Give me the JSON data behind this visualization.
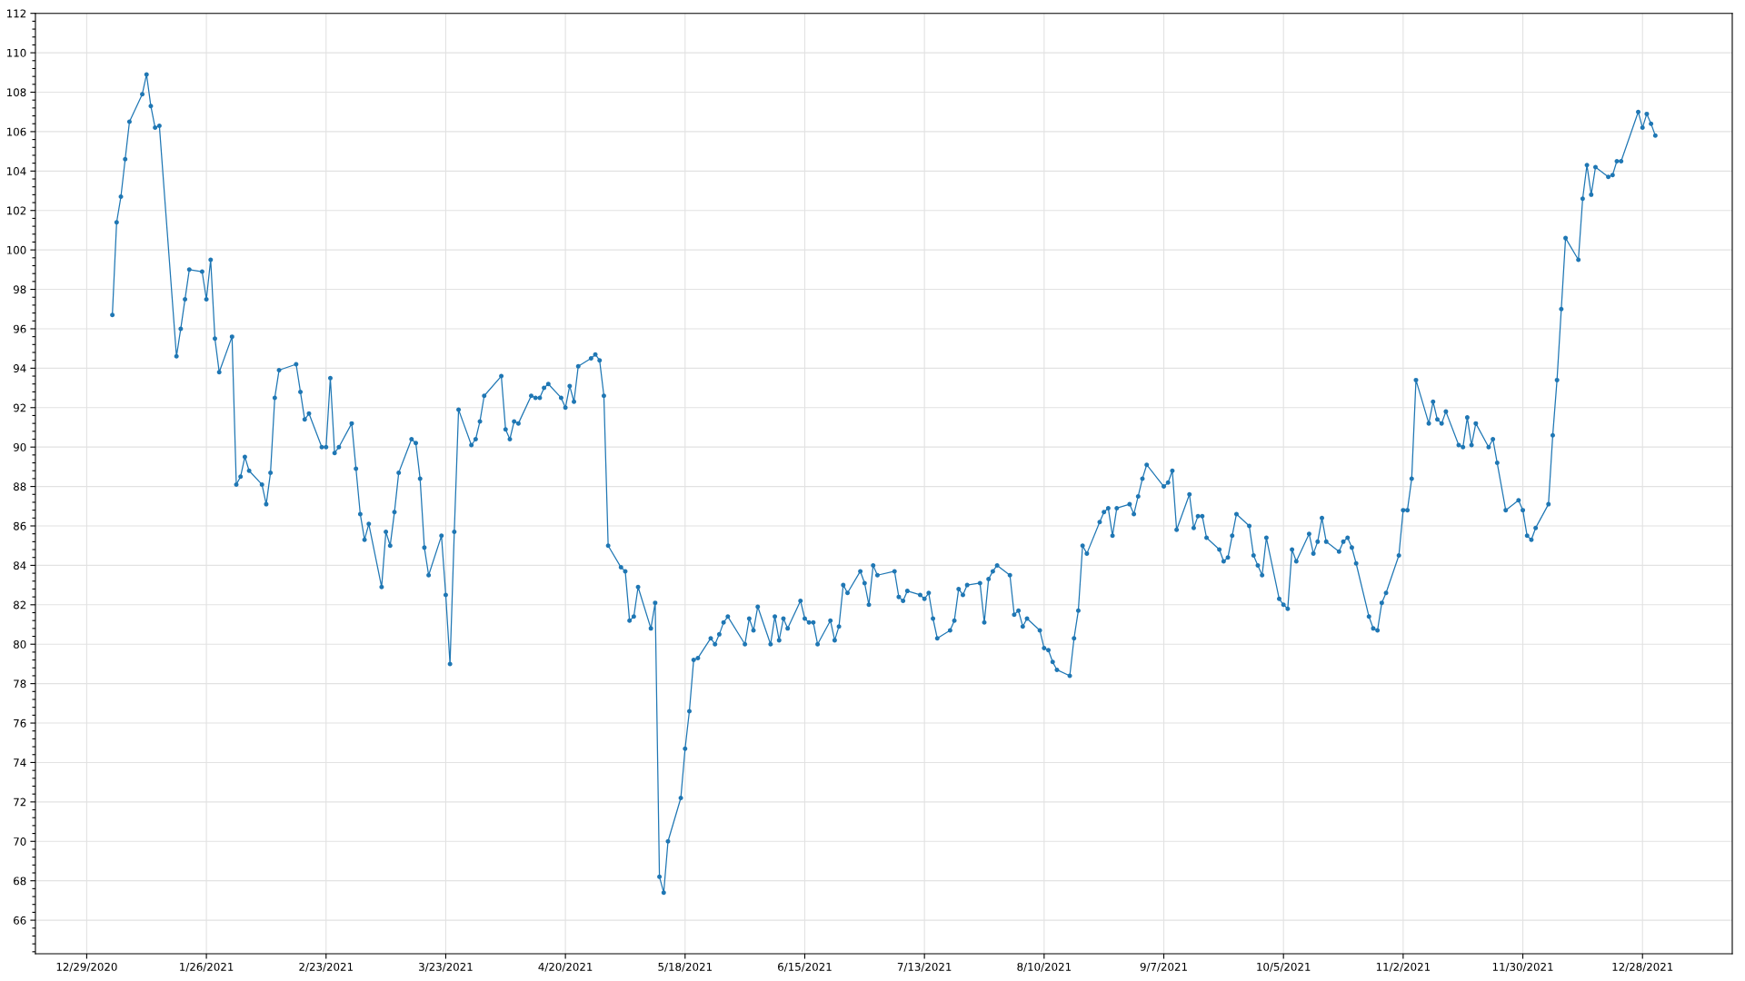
{
  "chart_data": {
    "type": "line",
    "x": [
      "2021-01-04",
      "2021-01-05",
      "2021-01-06",
      "2021-01-07",
      "2021-01-08",
      "2021-01-11",
      "2021-01-12",
      "2021-01-13",
      "2021-01-14",
      "2021-01-15",
      "2021-01-19",
      "2021-01-20",
      "2021-01-21",
      "2021-01-22",
      "2021-01-25",
      "2021-01-26",
      "2021-01-27",
      "2021-01-28",
      "2021-01-29",
      "2021-02-01",
      "2021-02-02",
      "2021-02-03",
      "2021-02-04",
      "2021-02-05",
      "2021-02-08",
      "2021-02-09",
      "2021-02-10",
      "2021-02-11",
      "2021-02-12",
      "2021-02-16",
      "2021-02-17",
      "2021-02-18",
      "2021-02-19",
      "2021-02-22",
      "2021-02-23",
      "2021-02-24",
      "2021-02-25",
      "2021-02-26",
      "2021-03-01",
      "2021-03-02",
      "2021-03-03",
      "2021-03-04",
      "2021-03-05",
      "2021-03-08",
      "2021-03-09",
      "2021-03-10",
      "2021-03-11",
      "2021-03-12",
      "2021-03-15",
      "2021-03-16",
      "2021-03-17",
      "2021-03-18",
      "2021-03-19",
      "2021-03-22",
      "2021-03-23",
      "2021-03-24",
      "2021-03-25",
      "2021-03-26",
      "2021-03-29",
      "2021-03-30",
      "2021-03-31",
      "2021-04-01",
      "2021-04-05",
      "2021-04-06",
      "2021-04-07",
      "2021-04-08",
      "2021-04-09",
      "2021-04-12",
      "2021-04-13",
      "2021-04-14",
      "2021-04-15",
      "2021-04-16",
      "2021-04-19",
      "2021-04-20",
      "2021-04-21",
      "2021-04-22",
      "2021-04-23",
      "2021-04-26",
      "2021-04-27",
      "2021-04-28",
      "2021-04-29",
      "2021-04-30",
      "2021-05-03",
      "2021-05-04",
      "2021-05-05",
      "2021-05-06",
      "2021-05-07",
      "2021-05-10",
      "2021-05-11",
      "2021-05-12",
      "2021-05-13",
      "2021-05-14",
      "2021-05-17",
      "2021-05-18",
      "2021-05-19",
      "2021-05-20",
      "2021-05-21",
      "2021-05-24",
      "2021-05-25",
      "2021-05-26",
      "2021-05-27",
      "2021-05-28",
      "2021-06-01",
      "2021-06-02",
      "2021-06-03",
      "2021-06-04",
      "2021-06-07",
      "2021-06-08",
      "2021-06-09",
      "2021-06-10",
      "2021-06-11",
      "2021-06-14",
      "2021-06-15",
      "2021-06-16",
      "2021-06-17",
      "2021-06-18",
      "2021-06-21",
      "2021-06-22",
      "2021-06-23",
      "2021-06-24",
      "2021-06-25",
      "2021-06-28",
      "2021-06-29",
      "2021-06-30",
      "2021-07-01",
      "2021-07-02",
      "2021-07-06",
      "2021-07-07",
      "2021-07-08",
      "2021-07-09",
      "2021-07-12",
      "2021-07-13",
      "2021-07-14",
      "2021-07-15",
      "2021-07-16",
      "2021-07-19",
      "2021-07-20",
      "2021-07-21",
      "2021-07-22",
      "2021-07-23",
      "2021-07-26",
      "2021-07-27",
      "2021-07-28",
      "2021-07-29",
      "2021-07-30",
      "2021-08-02",
      "2021-08-03",
      "2021-08-04",
      "2021-08-05",
      "2021-08-06",
      "2021-08-09",
      "2021-08-10",
      "2021-08-11",
      "2021-08-12",
      "2021-08-13",
      "2021-08-16",
      "2021-08-17",
      "2021-08-18",
      "2021-08-19",
      "2021-08-20",
      "2021-08-23",
      "2021-08-24",
      "2021-08-25",
      "2021-08-26",
      "2021-08-27",
      "2021-08-30",
      "2021-08-31",
      "2021-09-01",
      "2021-09-02",
      "2021-09-03",
      "2021-09-07",
      "2021-09-08",
      "2021-09-09",
      "2021-09-10",
      "2021-09-13",
      "2021-09-14",
      "2021-09-15",
      "2021-09-16",
      "2021-09-17",
      "2021-09-20",
      "2021-09-21",
      "2021-09-22",
      "2021-09-23",
      "2021-09-24",
      "2021-09-27",
      "2021-09-28",
      "2021-09-29",
      "2021-09-30",
      "2021-10-01",
      "2021-10-04",
      "2021-10-05",
      "2021-10-06",
      "2021-10-07",
      "2021-10-08",
      "2021-10-11",
      "2021-10-12",
      "2021-10-13",
      "2021-10-14",
      "2021-10-15",
      "2021-10-18",
      "2021-10-19",
      "2021-10-20",
      "2021-10-21",
      "2021-10-22",
      "2021-10-25",
      "2021-10-26",
      "2021-10-27",
      "2021-10-28",
      "2021-10-29",
      "2021-11-01",
      "2021-11-02",
      "2021-11-03",
      "2021-11-04",
      "2021-11-05",
      "2021-11-08",
      "2021-11-09",
      "2021-11-10",
      "2021-11-11",
      "2021-11-12",
      "2021-11-15",
      "2021-11-16",
      "2021-11-17",
      "2021-11-18",
      "2021-11-19",
      "2021-11-22",
      "2021-11-23",
      "2021-11-24",
      "2021-11-26",
      "2021-11-29",
      "2021-11-30",
      "2021-12-01",
      "2021-12-02",
      "2021-12-03",
      "2021-12-06",
      "2021-12-07",
      "2021-12-08",
      "2021-12-09",
      "2021-12-10",
      "2021-12-13",
      "2021-12-14",
      "2021-12-15",
      "2021-12-16",
      "2021-12-17",
      "2021-12-20",
      "2021-12-21",
      "2021-12-22",
      "2021-12-23",
      "2021-12-27",
      "2021-12-28",
      "2021-12-29",
      "2021-12-30",
      "2021-12-31"
    ],
    "values": [
      96.7,
      101.4,
      102.7,
      104.6,
      106.5,
      107.9,
      108.9,
      107.3,
      106.2,
      106.3,
      94.6,
      96.0,
      97.5,
      99.0,
      98.9,
      97.5,
      99.5,
      95.5,
      93.8,
      95.6,
      88.1,
      88.5,
      89.5,
      88.8,
      88.1,
      87.1,
      88.7,
      92.5,
      93.9,
      94.2,
      92.8,
      91.4,
      91.7,
      90.0,
      90.0,
      93.5,
      89.7,
      90.0,
      91.2,
      88.9,
      86.6,
      85.3,
      86.1,
      82.9,
      85.7,
      85.0,
      86.7,
      88.7,
      90.4,
      90.2,
      88.4,
      84.9,
      83.5,
      85.5,
      82.5,
      79.0,
      85.7,
      91.9,
      90.1,
      90.4,
      91.3,
      92.6,
      93.6,
      90.9,
      90.4,
      91.3,
      91.2,
      92.6,
      92.5,
      92.5,
      93.0,
      93.2,
      92.5,
      92.0,
      93.1,
      92.3,
      94.1,
      94.5,
      94.7,
      94.4,
      92.6,
      85.0,
      83.9,
      83.7,
      81.2,
      81.4,
      82.9,
      80.8,
      82.1,
      68.2,
      67.4,
      70.0,
      72.2,
      74.7,
      76.6,
      79.2,
      79.3,
      80.3,
      80.0,
      80.5,
      81.1,
      81.4,
      80.0,
      81.3,
      80.7,
      81.9,
      80.0,
      81.4,
      80.2,
      81.3,
      80.8,
      82.2,
      81.3,
      81.1,
      81.1,
      80.0,
      81.2,
      80.2,
      80.9,
      83.0,
      82.6,
      83.7,
      83.1,
      82.0,
      84.0,
      83.5,
      83.7,
      82.4,
      82.2,
      82.7,
      82.5,
      82.3,
      82.6,
      81.3,
      80.3,
      80.7,
      81.2,
      82.8,
      82.5,
      83.0,
      83.1,
      81.1,
      83.3,
      83.7,
      84.0,
      83.5,
      81.5,
      81.7,
      80.9,
      81.3,
      80.7,
      79.8,
      79.7,
      79.1,
      78.7,
      78.4,
      80.3,
      81.7,
      85.0,
      84.6,
      86.2,
      86.7,
      86.9,
      85.5,
      86.9,
      87.1,
      86.6,
      87.5,
      88.4,
      89.1,
      88.0,
      88.2,
      88.8,
      85.8,
      87.6,
      85.9,
      86.5,
      86.5,
      85.4,
      84.8,
      84.2,
      84.4,
      85.5,
      86.6,
      86.0,
      84.5,
      84.0,
      83.5,
      85.4,
      82.3,
      82.0,
      81.8,
      84.8,
      84.2,
      85.6,
      84.6,
      85.2,
      86.4,
      85.2,
      84.7,
      85.2,
      85.4,
      84.9,
      84.1,
      81.4,
      80.8,
      80.7,
      82.1,
      82.6,
      84.5,
      86.8,
      86.8,
      88.4,
      93.4,
      91.2,
      92.3,
      91.4,
      91.2,
      91.8,
      90.1,
      90.0,
      91.5,
      90.1,
      91.2,
      90.0,
      90.4,
      89.2,
      86.8,
      87.3,
      86.8,
      85.5,
      85.3,
      85.9,
      87.1,
      90.6,
      93.4,
      97.0,
      100.6,
      99.5,
      102.6,
      104.3,
      102.8,
      104.2,
      103.7,
      103.8,
      104.5,
      104.5,
      107.0,
      106.2,
      106.9,
      106.4,
      105.8
    ],
    "color": "#1f77b4",
    "marker": "circle",
    "line_style": "solid",
    "grid": true,
    "xlim": [
      "2020-12-17",
      "2022-01-18"
    ],
    "xticks": [
      {
        "value": "2020-12-29",
        "label": "12/29/2020"
      },
      {
        "value": "2021-01-26",
        "label": "1/26/2021"
      },
      {
        "value": "2021-02-23",
        "label": "2/23/2021"
      },
      {
        "value": "2021-03-23",
        "label": "3/23/2021"
      },
      {
        "value": "2021-04-20",
        "label": "4/20/2021"
      },
      {
        "value": "2021-05-18",
        "label": "5/18/2021"
      },
      {
        "value": "2021-06-15",
        "label": "6/15/2021"
      },
      {
        "value": "2021-07-13",
        "label": "7/13/2021"
      },
      {
        "value": "2021-08-10",
        "label": "8/10/2021"
      },
      {
        "value": "2021-09-07",
        "label": "9/7/2021"
      },
      {
        "value": "2021-10-05",
        "label": "10/5/2021"
      },
      {
        "value": "2021-11-02",
        "label": "11/2/2021"
      },
      {
        "value": "2021-11-30",
        "label": "11/30/2021"
      },
      {
        "value": "2021-12-28",
        "label": "12/28/2021"
      }
    ],
    "ylim": [
      64.3,
      112
    ],
    "yticks": [
      {
        "value": 64.4,
        "label": null
      },
      {
        "value": 64.8,
        "label": null
      },
      {
        "value": 65.2,
        "label": null
      },
      {
        "value": 65.6,
        "label": null
      },
      66,
      {
        "value": 66.4,
        "label": null
      },
      {
        "value": 66.8,
        "label": null
      },
      {
        "value": 67.2,
        "label": null
      },
      {
        "value": 67.6,
        "label": null
      },
      68,
      {
        "value": 68.4,
        "label": null
      },
      {
        "value": 68.8,
        "label": null
      },
      {
        "value": 69.2,
        "label": null
      },
      {
        "value": 69.6,
        "label": null
      },
      70,
      {
        "value": 70.4,
        "label": null
      },
      {
        "value": 70.8,
        "label": null
      },
      {
        "value": 71.2,
        "label": null
      },
      {
        "value": 71.6,
        "label": null
      },
      72,
      {
        "value": 72.4,
        "label": null
      },
      {
        "value": 72.8,
        "label": null
      },
      {
        "value": 73.2,
        "label": null
      },
      {
        "value": 73.6,
        "label": null
      },
      74,
      {
        "value": 74.4,
        "label": null
      },
      {
        "value": 74.8,
        "label": null
      },
      {
        "value": 75.2,
        "label": null
      },
      {
        "value": 75.6,
        "label": null
      },
      76,
      {
        "value": 76.4,
        "label": null
      },
      {
        "value": 76.8,
        "label": null
      },
      {
        "value": 77.2,
        "label": null
      },
      {
        "value": 77.6,
        "label": null
      },
      78,
      {
        "value": 78.4,
        "label": null
      },
      {
        "value": 78.8,
        "label": null
      },
      {
        "value": 79.2,
        "label": null
      },
      {
        "value": 79.6,
        "label": null
      },
      80,
      {
        "value": 80.4,
        "label": null
      },
      {
        "value": 80.8,
        "label": null
      },
      {
        "value": 81.2,
        "label": null
      },
      {
        "value": 81.6,
        "label": null
      },
      82,
      {
        "value": 82.4,
        "label": null
      },
      {
        "value": 82.8,
        "label": null
      },
      {
        "value": 83.2,
        "label": null
      },
      {
        "value": 83.6,
        "label": null
      },
      84,
      {
        "value": 84.4,
        "label": null
      },
      {
        "value": 84.8,
        "label": null
      },
      {
        "value": 85.2,
        "label": null
      },
      {
        "value": 85.6,
        "label": null
      },
      86,
      {
        "value": 86.4,
        "label": null
      },
      {
        "value": 86.8,
        "label": null
      },
      {
        "value": 87.2,
        "label": null
      },
      {
        "value": 87.6,
        "label": null
      },
      88,
      {
        "value": 88.4,
        "label": null
      },
      {
        "value": 88.8,
        "label": null
      },
      {
        "value": 89.2,
        "label": null
      },
      {
        "value": 89.6,
        "label": null
      },
      90,
      {
        "value": 90.4,
        "label": null
      },
      {
        "value": 90.8,
        "label": null
      },
      {
        "value": 91.2,
        "label": null
      },
      {
        "value": 91.6,
        "label": null
      },
      92,
      {
        "value": 92.4,
        "label": null
      },
      {
        "value": 92.8,
        "label": null
      },
      {
        "value": 93.2,
        "label": null
      },
      {
        "value": 93.6,
        "label": null
      },
      94,
      {
        "value": 94.4,
        "label": null
      },
      {
        "value": 94.8,
        "label": null
      },
      {
        "value": 95.2,
        "label": null
      },
      {
        "value": 95.6,
        "label": null
      },
      96,
      {
        "value": 96.4,
        "label": null
      },
      {
        "value": 96.8,
        "label": null
      },
      {
        "value": 97.2,
        "label": null
      },
      {
        "value": 97.6,
        "label": null
      },
      98,
      {
        "value": 98.4,
        "label": null
      },
      {
        "value": 98.8,
        "label": null
      },
      {
        "value": 99.2,
        "label": null
      },
      {
        "value": 99.6,
        "label": null
      },
      100,
      {
        "value": 100.4,
        "label": null
      },
      {
        "value": 100.8,
        "label": null
      },
      {
        "value": 101.2,
        "label": null
      },
      {
        "value": 101.6,
        "label": null
      },
      102,
      {
        "value": 102.4,
        "label": null
      },
      {
        "value": 102.8,
        "label": null
      },
      {
        "value": 103.2,
        "label": null
      },
      {
        "value": 103.6,
        "label": null
      },
      104,
      {
        "value": 104.4,
        "label": null
      },
      {
        "value": 104.8,
        "label": null
      },
      {
        "value": 105.2,
        "label": null
      },
      {
        "value": 105.6,
        "label": null
      },
      106,
      {
        "value": 106.4,
        "label": null
      },
      {
        "value": 106.8,
        "label": null
      },
      {
        "value": 107.2,
        "label": null
      },
      {
        "value": 107.6,
        "label": null
      },
      108,
      {
        "value": 108.4,
        "label": null
      },
      {
        "value": 108.8,
        "label": null
      },
      {
        "value": 109.2,
        "label": null
      },
      {
        "value": 109.6,
        "label": null
      },
      110,
      {
        "value": 110.4,
        "label": null
      },
      {
        "value": 110.8,
        "label": null
      },
      {
        "value": 111.2,
        "label": null
      },
      {
        "value": 111.6,
        "label": null
      },
      112
    ]
  }
}
